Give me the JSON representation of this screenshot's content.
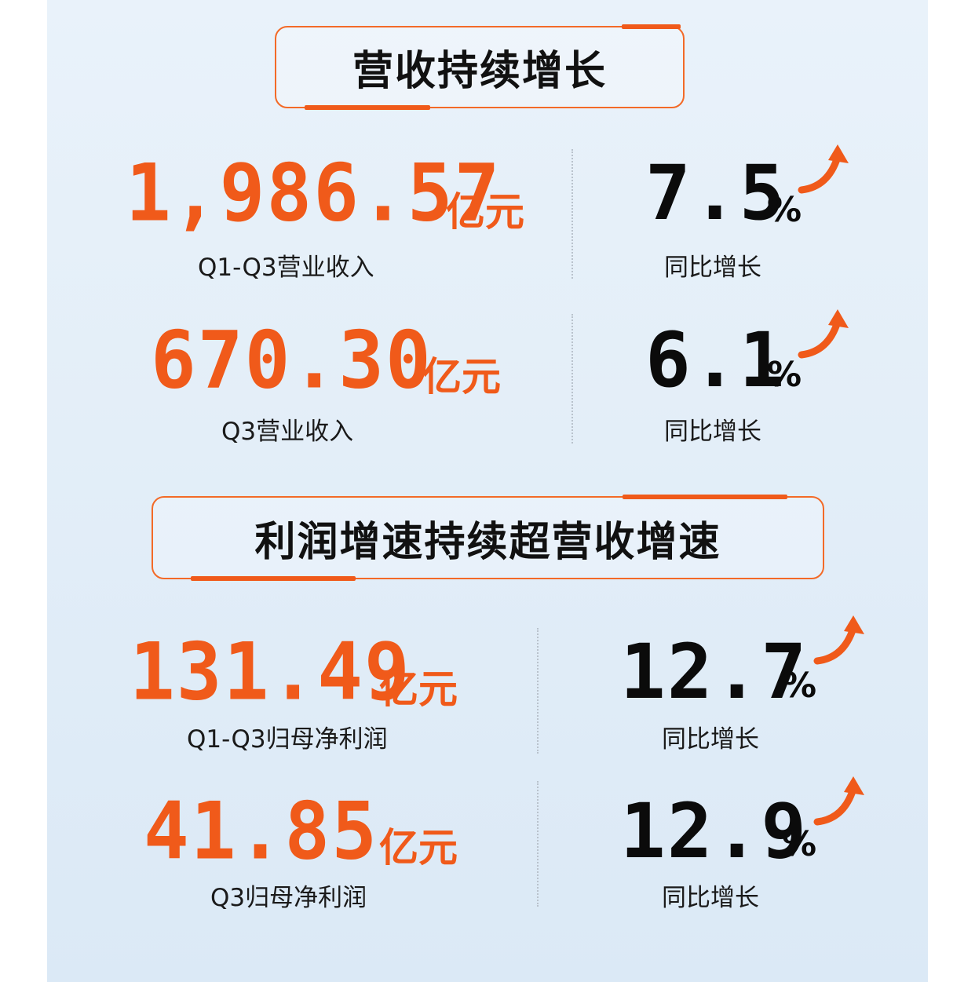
{
  "section1": {
    "title": "营收持续增长",
    "rows": [
      {
        "value": "1,986.57",
        "unit": "亿元",
        "caption": "Q1-Q3营业收入",
        "growth": "7.5",
        "growth_unit": "%",
        "growth_caption": "同比增长"
      },
      {
        "value": "670.30",
        "unit": "亿元",
        "caption": "Q3营业收入",
        "growth": "6.1",
        "growth_unit": "%",
        "growth_caption": "同比增长"
      }
    ]
  },
  "section2": {
    "title": "利润增速持续超营收增速",
    "rows": [
      {
        "value": "131.49",
        "unit": "亿元",
        "caption": "Q1-Q3归母净利润",
        "growth": "12.7",
        "growth_unit": "%",
        "growth_caption": "同比增长"
      },
      {
        "value": "41.85",
        "unit": "亿元",
        "caption": "Q3归母净利润",
        "growth": "12.9",
        "growth_unit": "%",
        "growth_caption": "同比增长"
      }
    ]
  },
  "colors": {
    "accent": "#f05a1a",
    "text": "#111111",
    "background": "#e6f0f9"
  },
  "icons": {
    "growth": "up-arrow-icon"
  }
}
